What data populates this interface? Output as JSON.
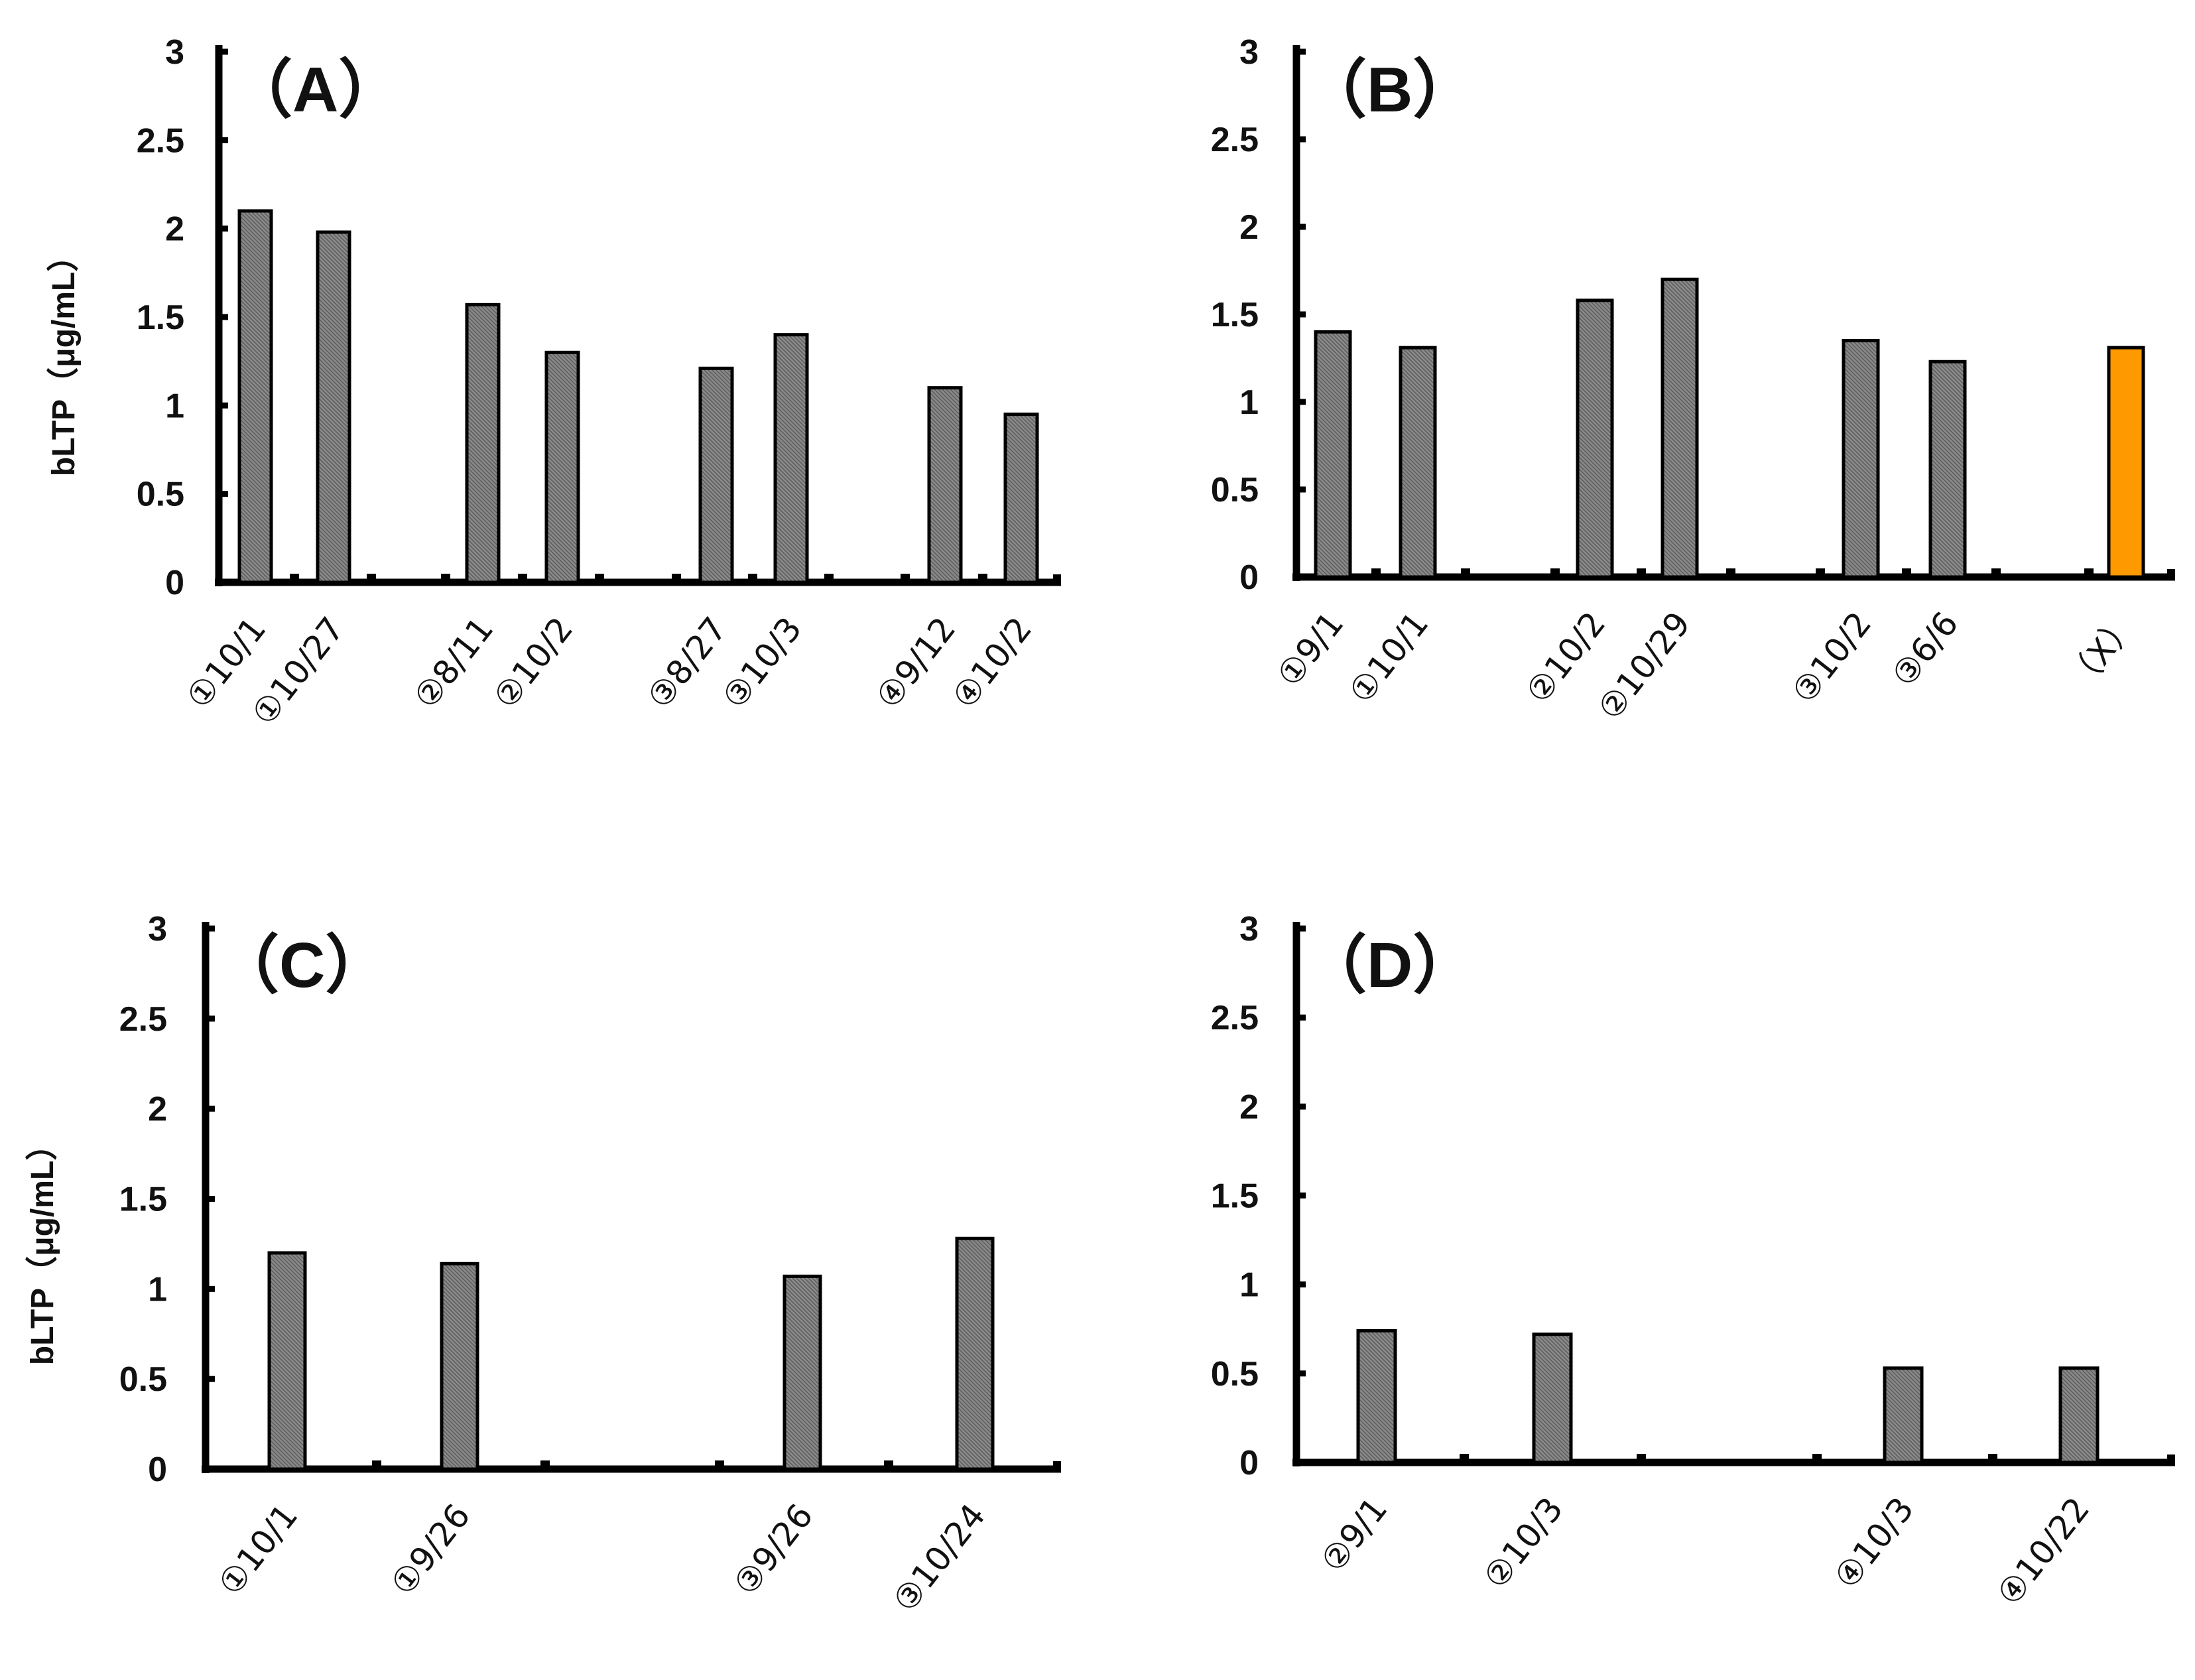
{
  "chart_data": [
    {
      "panel": "A",
      "type": "bar",
      "title": "（A）",
      "ylabel": "bLTP（μg/mL）",
      "ylim": [
        0,
        3
      ],
      "yticks": [
        "0",
        "0.5",
        "1",
        "1.5",
        "2",
        "2.5",
        "3"
      ],
      "categories": [
        "①10/1",
        "①10/27",
        "②8/11",
        "②10/2",
        "③8/27",
        "③10/3",
        "④9/12",
        "④10/2"
      ],
      "values": [
        2.1,
        1.98,
        1.57,
        1.3,
        1.21,
        1.4,
        1.1,
        0.95
      ],
      "colors": [
        "#7b7b7b",
        "#7b7b7b",
        "#7b7b7b",
        "#7b7b7b",
        "#7b7b7b",
        "#7b7b7b",
        "#7b7b7b",
        "#7b7b7b"
      ]
    },
    {
      "panel": "B",
      "type": "bar",
      "title": "（B）",
      "ylabel": "",
      "ylim": [
        0,
        3
      ],
      "yticks": [
        "0",
        "0.5",
        "1",
        "1.5",
        "2",
        "2.5",
        "3"
      ],
      "categories": [
        "①9/1",
        "①10/1",
        "②10/2",
        "②10/29",
        "③10/2",
        "③6/6",
        "（X）"
      ],
      "values": [
        1.4,
        1.31,
        1.58,
        1.7,
        1.35,
        1.23,
        1.31
      ],
      "colors": [
        "#7b7b7b",
        "#7b7b7b",
        "#7b7b7b",
        "#7b7b7b",
        "#7b7b7b",
        "#7b7b7b",
        "#ff9900"
      ]
    },
    {
      "panel": "C",
      "type": "bar",
      "title": "（C）",
      "ylabel": "bLTP（μg/mL）",
      "ylim": [
        0,
        3
      ],
      "yticks": [
        "0",
        "0.5",
        "1",
        "1.5",
        "2",
        "2.5",
        "3"
      ],
      "categories": [
        "①10/1",
        "①9/26",
        "③9/26",
        "③10/24"
      ],
      "values": [
        1.2,
        1.14,
        1.07,
        1.28
      ],
      "colors": [
        "#7b7b7b",
        "#7b7b7b",
        "#7b7b7b",
        "#7b7b7b"
      ]
    },
    {
      "panel": "D",
      "type": "bar",
      "title": "（D）",
      "ylabel": "",
      "ylim": [
        0,
        3
      ],
      "yticks": [
        "0",
        "0.5",
        "1",
        "1.5",
        "2",
        "2.5",
        "3"
      ],
      "categories": [
        "②9/1",
        "②10/3",
        "④10/3",
        "④10/22"
      ],
      "values": [
        0.74,
        0.72,
        0.53,
        0.53
      ],
      "colors": [
        "#7b7b7b",
        "#7b7b7b",
        "#7b7b7b",
        "#7b7b7b"
      ]
    }
  ]
}
